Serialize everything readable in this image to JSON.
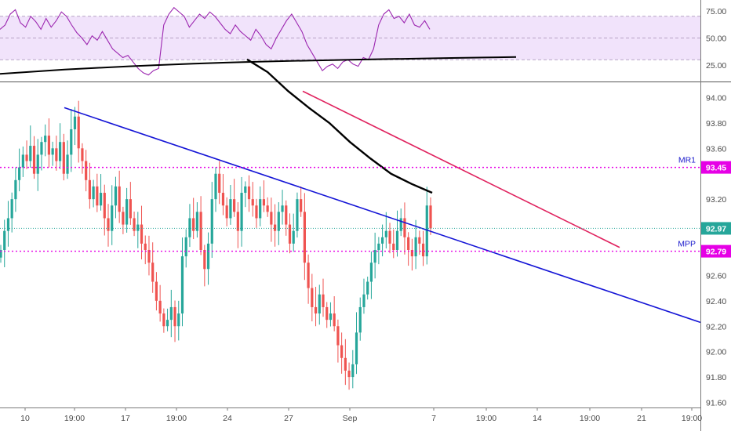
{
  "colors": {
    "up": "#26a69a",
    "down": "#ef5350",
    "rsi": "#9c27b0",
    "rsi_band": "#f1e3fb",
    "ma": "#000000",
    "trendline_blue": "#1515d6",
    "trendline_red": "#e0235f",
    "pivot": "#e600e6",
    "last_price": "#26a69a"
  },
  "chart_data": [
    {
      "type": "line",
      "panel": "rsi",
      "y_ticks": [
        "75.00",
        "50.00",
        "25.00"
      ],
      "ylim": [
        10,
        85
      ],
      "band": [
        30,
        70
      ],
      "rsi_values": [
        58,
        62,
        72,
        76,
        64,
        60,
        70,
        65,
        58,
        68,
        60,
        66,
        74,
        70,
        62,
        55,
        50,
        44,
        52,
        48,
        56,
        48,
        40,
        36,
        32,
        34,
        28,
        22,
        18,
        16,
        20,
        22,
        62,
        72,
        78,
        74,
        70,
        60,
        66,
        72,
        68,
        74,
        70,
        64,
        58,
        54,
        62,
        56,
        52,
        48,
        58,
        52,
        44,
        40,
        50,
        58,
        66,
        72,
        64,
        56,
        44,
        36,
        28,
        20,
        24,
        26,
        22,
        28,
        30,
        26,
        24,
        32,
        30,
        40,
        62,
        72,
        76,
        68,
        70,
        64,
        72,
        62,
        60,
        66,
        58
      ],
      "ma_values": [
        17,
        19,
        21,
        22.5,
        24,
        25.2,
        26.4,
        27.4,
        28.2,
        28.9,
        29.5,
        30.1,
        30.6,
        31.1,
        31.6,
        32.1,
        32.5
      ]
    },
    {
      "type": "candlestick",
      "panel": "price",
      "y_ticks": [
        "94.00",
        "93.80",
        "93.60",
        "93.40",
        "93.20",
        "93.00",
        "92.80",
        "92.60",
        "92.40",
        "92.20",
        "92.00",
        "91.80",
        "91.60"
      ],
      "ylim": [
        91.56,
        94.12
      ],
      "x_ticks": [
        "10",
        "19:00",
        "17",
        "19:00",
        "24",
        "27",
        "Sep",
        "7",
        "19:00",
        "14",
        "19:00",
        "21",
        "19:00"
      ],
      "closes": [
        92.8,
        92.95,
        93.05,
        93.2,
        93.35,
        93.45,
        93.55,
        93.5,
        93.62,
        93.4,
        93.55,
        93.65,
        93.7,
        93.55,
        93.6,
        93.5,
        93.65,
        93.4,
        93.55,
        93.75,
        93.85,
        93.6,
        93.5,
        93.35,
        93.2,
        93.3,
        93.15,
        93.25,
        93.05,
        92.95,
        93.15,
        93.3,
        93.1,
        93.0,
        93.2,
        93.05,
        92.95,
        93.0,
        92.85,
        92.8,
        92.7,
        92.55,
        92.4,
        92.3,
        92.2,
        92.25,
        92.35,
        92.2,
        92.3,
        92.75,
        92.9,
        93.05,
        92.95,
        93.1,
        92.8,
        92.65,
        92.85,
        93.2,
        93.4,
        93.25,
        93.15,
        93.05,
        93.2,
        93.1,
        92.95,
        93.25,
        93.3,
        93.2,
        93.15,
        93.05,
        93.2,
        93.15,
        93.1,
        93.0,
        92.95,
        93.1,
        93.15,
        93.0,
        92.85,
        92.95,
        93.2,
        93.1,
        92.7,
        92.5,
        92.35,
        92.3,
        92.45,
        92.35,
        92.25,
        92.3,
        92.2,
        92.05,
        91.95,
        91.85,
        91.8,
        91.9,
        92.15,
        92.35,
        92.45,
        92.55,
        92.7,
        92.8,
        92.85,
        92.9,
        92.95,
        92.85,
        92.8,
        92.95,
        93.05,
        92.9,
        92.8,
        92.75,
        92.9,
        92.85,
        92.75,
        93.15,
        92.97
      ],
      "price_levels": [
        {
          "label": "MR1",
          "value": 93.45,
          "tag": "93.45"
        },
        {
          "label": "MPP",
          "value": 92.79,
          "tag": "92.79"
        }
      ],
      "last_price": {
        "value": 92.97,
        "tag": "92.97"
      },
      "ma_values": [
        94.3,
        94.2,
        94.05,
        93.92,
        93.8,
        93.65,
        93.52,
        93.4,
        93.32,
        93.25
      ],
      "trendlines": [
        {
          "name": "blue-trendline",
          "points": [
            [
              93.92,
              0
            ],
            [
              92.23,
              1
            ]
          ]
        },
        {
          "name": "red-trendline",
          "points": [
            [
              94.05,
              0
            ],
            [
              92.82,
              1
            ]
          ]
        }
      ]
    }
  ]
}
